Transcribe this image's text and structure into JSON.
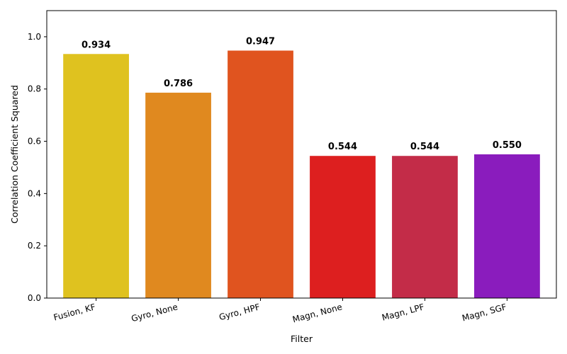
{
  "chart_data": {
    "type": "bar",
    "title": "",
    "xlabel": "Filter",
    "ylabel": "Correlation Coefficient Squared",
    "ylim": [
      0,
      1.1
    ],
    "yticks": [
      0.0,
      0.2,
      0.4,
      0.6,
      0.8,
      1.0
    ],
    "ytick_labels": [
      "0.0",
      "0.2",
      "0.4",
      "0.6",
      "0.8",
      "1.0"
    ],
    "grid": false,
    "legend": "none",
    "categories": [
      "Fusion, KF",
      "Gyro, None",
      "Gyro, HPF",
      "Magn, None",
      "Magn, LPF",
      "Magn, SGF"
    ],
    "values": [
      0.934,
      0.786,
      0.947,
      0.544,
      0.544,
      0.55
    ],
    "value_labels": [
      "0.934",
      "0.786",
      "0.947",
      "0.544",
      "0.544",
      "0.550"
    ],
    "colors": [
      "#dfc21f",
      "#e0891f",
      "#e0541f",
      "#dd1f1f",
      "#c32c48",
      "#8a1cbd"
    ]
  }
}
